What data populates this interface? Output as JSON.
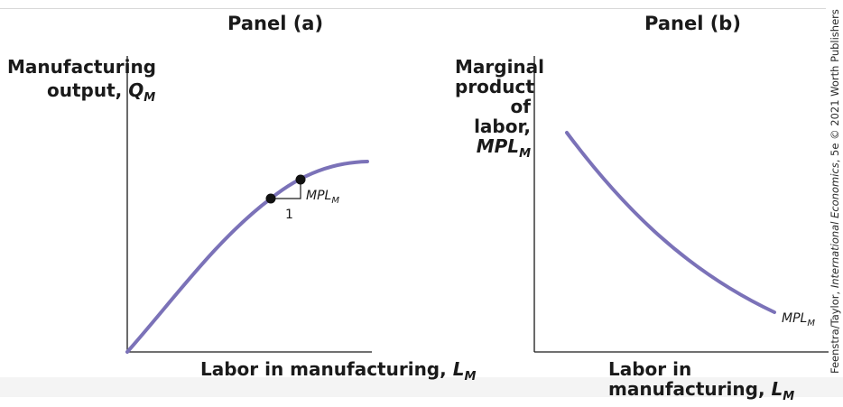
{
  "panels": {
    "a": {
      "title": "Panel (a)",
      "y_label_line1": "Manufacturing",
      "y_label_line2_prefix": "output, ",
      "y_label_var": "Q",
      "y_label_sub": "M",
      "x_label_prefix": "Labor in manufacturing, ",
      "x_label_var": "L",
      "x_label_sub": "M",
      "run_label": "1",
      "slope_label_var": "MPL",
      "slope_label_sub": "M"
    },
    "b": {
      "title": "Panel (b)",
      "y_label_lines": [
        "Marginal",
        "product",
        "of labor,"
      ],
      "y_label_var": "MPL",
      "y_label_sub": "M",
      "x_label_prefix": "Labor in manufacturing, ",
      "x_label_var": "L",
      "x_label_sub": "M",
      "curve_label_var": "MPL",
      "curve_label_sub": "M"
    }
  },
  "credit": {
    "prefix": "Feenstra/Taylor, ",
    "book": "International Economics",
    "suffix": ", 5e © 2021 Worth Publishers"
  },
  "chart_data": [
    {
      "type": "line",
      "title": "Panel (a)",
      "xlabel": "Labor in manufacturing, L_M",
      "ylabel": "Manufacturing output, Q_M",
      "curve": "concave production function, rising from origin and flattening",
      "points_marked": 2,
      "grid": false
    },
    {
      "type": "line",
      "title": "Panel (b)",
      "xlabel": "Labor in manufacturing, L_M",
      "ylabel": "Marginal product of labor, MPL_M",
      "curve": "downward-sloping, convex",
      "series": [
        {
          "name": "MPL_M"
        }
      ],
      "grid": false
    }
  ],
  "style": {
    "curve_color": "#7b72b8",
    "axis_color": "#1a1a1a",
    "point_color": "#111111"
  }
}
